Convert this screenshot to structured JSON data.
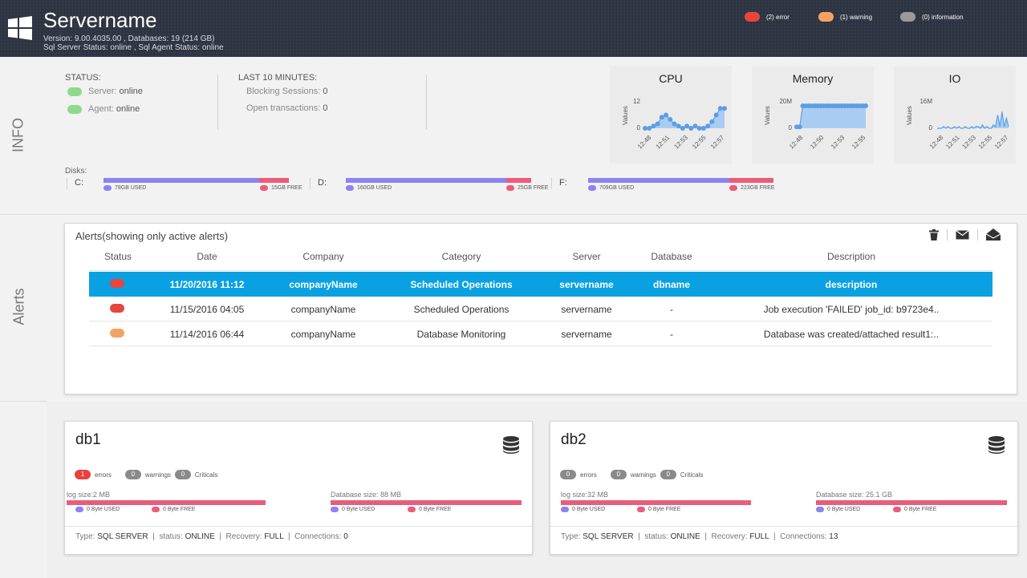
{
  "header": {
    "title": "Servername",
    "version_line": "Version: 9.00.4035.00 , Databases: 19 (214 GB)",
    "status_line": "Sql Server Status: online , Sql Agent Status: online",
    "legend": [
      {
        "label": "(2) error",
        "color": "#e8453c"
      },
      {
        "label": "(1) warning",
        "color": "#f4a261"
      },
      {
        "label": "(0) information",
        "color": "#9a9a9a"
      }
    ]
  },
  "sections": {
    "info": "INFO",
    "alerts": "Alerts"
  },
  "info": {
    "status_title": "STATUS:",
    "server_key": "Server:",
    "server_val": "online",
    "agent_key": "Agent:",
    "agent_val": "online",
    "last_title": "LAST 10 MINUTES:",
    "blocking_key": "Blocking Sessions:",
    "blocking_val": "0",
    "open_key": "Open transactions:",
    "open_val": "0",
    "status_color": "#8fd98f"
  },
  "charts": [
    {
      "title": "CPU",
      "ylabel": "Values",
      "ytop": "12",
      "ybottom": "0",
      "ticks": [
        "12:48",
        "12:51",
        "12:53",
        "12:55",
        "12:57"
      ]
    },
    {
      "title": "Memory",
      "ylabel": "Values",
      "ytop": "20M",
      "ybottom": "0",
      "ticks": [
        "12:48",
        "12:50",
        "12:53",
        "12:55"
      ]
    },
    {
      "title": "IO",
      "ylabel": "Values",
      "ytop": "16M",
      "ybottom": "0",
      "ticks": [
        "12:48",
        "12:51",
        "12:53",
        "12:55",
        "12:57"
      ]
    }
  ],
  "chart_data": [
    {
      "type": "area",
      "title": "CPU",
      "ylabel": "Values",
      "ylim": [
        0,
        12
      ],
      "x": [
        "12:48",
        "12:48",
        "12:49",
        "12:49",
        "12:50",
        "12:50",
        "12:51",
        "12:51",
        "12:52",
        "12:52",
        "12:53",
        "12:53",
        "12:54",
        "12:54",
        "12:55",
        "12:55",
        "12:56",
        "12:56",
        "12:57",
        "12:57"
      ],
      "values": [
        0,
        0,
        1,
        2,
        5,
        6,
        4,
        2,
        1,
        0,
        1,
        0,
        1,
        0,
        0,
        1,
        3,
        6,
        9,
        9
      ]
    },
    {
      "type": "area",
      "title": "Memory",
      "ylabel": "Values",
      "ylim": [
        0,
        20
      ],
      "values": [
        1,
        1,
        17,
        17,
        17,
        17,
        17,
        17,
        17,
        17,
        17,
        17,
        17,
        17,
        17,
        17,
        17,
        17,
        17,
        17,
        17,
        17,
        17,
        17
      ]
    },
    {
      "type": "area",
      "title": "IO",
      "ylabel": "Values",
      "ylim": [
        0,
        16
      ],
      "values": [
        0,
        0,
        0,
        1,
        0,
        1,
        0,
        0,
        1,
        0,
        1,
        0,
        0,
        1,
        0,
        0,
        1,
        0,
        1,
        1,
        0,
        2,
        0,
        1,
        0,
        0,
        2,
        1,
        8,
        1,
        10,
        1,
        6,
        1
      ]
    }
  ],
  "disks": {
    "title": "Disks:",
    "items": [
      {
        "letter": "C:",
        "used_label": "78GB USED",
        "free_label": "15GB FREE",
        "used": 78,
        "free": 15
      },
      {
        "letter": "D:",
        "used_label": "160GB USED",
        "free_label": "25GB FREE",
        "used": 160,
        "free": 25
      },
      {
        "letter": "F:",
        "used_label": "709GB USED",
        "free_label": "223GB FREE",
        "used": 709,
        "free": 223
      }
    ],
    "used_color": "#8c82f0",
    "free_color": "#ee5a7a"
  },
  "alerts": {
    "title": "Alerts(showing only active alerts)",
    "columns": [
      "Status",
      "Date",
      "Company",
      "Category",
      "Server",
      "Database",
      "Description"
    ],
    "rows": [
      {
        "color": "#e8453c",
        "date": "11/20/2016 11:12",
        "company": "companyName",
        "category": "Scheduled Operations",
        "server": "servername",
        "database": "dbname",
        "description": "description"
      },
      {
        "color": "#e8453c",
        "date": "11/15/2016 04:05",
        "company": "companyName",
        "category": "Scheduled Operations",
        "server": "servername",
        "database": "-",
        "description": "Job execution 'FAILED'  job_id: b9723e4.."
      },
      {
        "color": "#f4a261",
        "date": "11/14/2016 06:44",
        "company": "companyName",
        "category": "Database Monitoring",
        "server": "servername",
        "database": "-",
        "description": "Database was created/attached  result1:.."
      }
    ]
  },
  "databases": [
    {
      "name": "db1",
      "errors": "1",
      "warnings": "0",
      "criticals": "0",
      "errors_label": "errors",
      "warnings_label": "warnings",
      "criticals_label": "Criticals",
      "log_label": "log size:2 MB",
      "db_label": "Database size: 88 MB",
      "used_label": "0 Byte USED",
      "free_label": "0 Byte FREE",
      "type_key": "Type:",
      "type_val": "SQL SERVER",
      "status_key": "status:",
      "status_val": "ONLINE",
      "recovery_key": "Recovery:",
      "recovery_val": "FULL",
      "conn_key": "Connections:",
      "conn_val": "0"
    },
    {
      "name": "db2",
      "errors": "0",
      "warnings": "0",
      "criticals": "0",
      "errors_label": "errors",
      "warnings_label": "warnings",
      "criticals_label": "Criticals",
      "log_label": "log size:32 MB",
      "db_label": "Database size: 25.1 GB",
      "used_label": "0 Byte USED",
      "free_label": "0 Byte FREE",
      "type_key": "Type:",
      "type_val": "SQL SERVER",
      "status_key": "status:",
      "status_val": "ONLINE",
      "recovery_key": "Recovery:",
      "recovery_val": "FULL",
      "conn_key": "Connections:",
      "conn_val": "13"
    }
  ]
}
